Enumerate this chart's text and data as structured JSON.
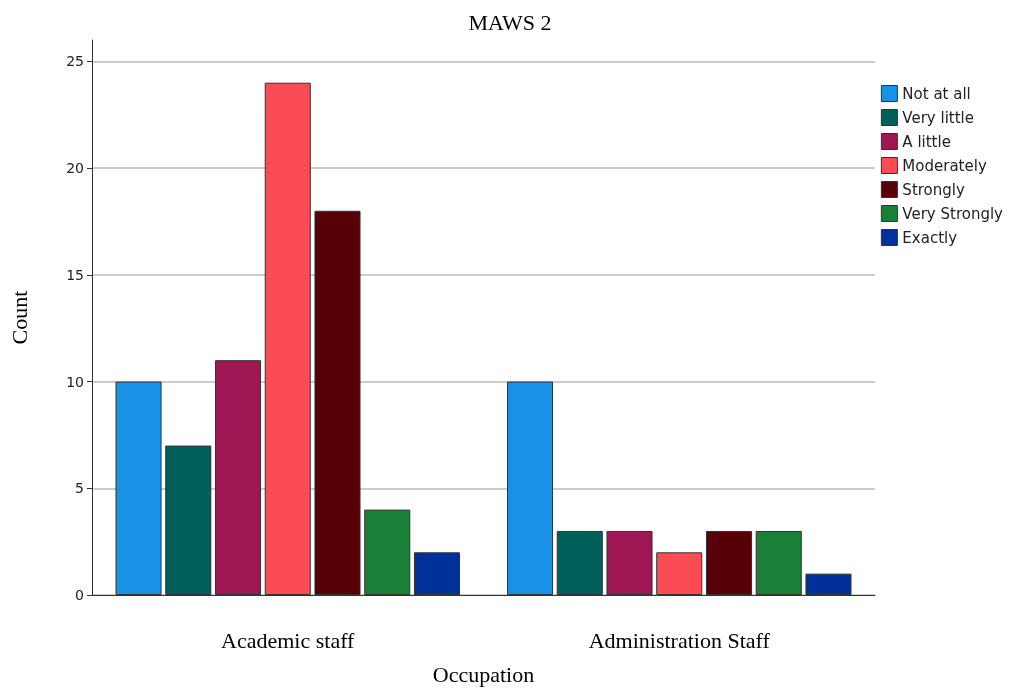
{
  "chart_data": {
    "type": "bar",
    "title": "MAWS 2",
    "xlabel": "Occupation",
    "ylabel": "Count",
    "categories": [
      "Academic staff",
      "Administration Staff"
    ],
    "series": [
      {
        "name": "Not at all",
        "color": "#1892e6",
        "values": [
          10,
          10
        ]
      },
      {
        "name": "Very little",
        "color": "#005e5b",
        "values": [
          7,
          3
        ]
      },
      {
        "name": "A little",
        "color": "#9e1752",
        "values": [
          11,
          3
        ]
      },
      {
        "name": "Moderately",
        "color": "#fb4b54",
        "values": [
          24,
          2
        ]
      },
      {
        "name": "Strongly",
        "color": "#570007",
        "values": [
          18,
          3
        ]
      },
      {
        "name": "Very Strongly",
        "color": "#1a8038",
        "values": [
          4,
          3
        ]
      },
      {
        "name": "Exactly",
        "color": "#00309a",
        "values": [
          2,
          1
        ]
      }
    ],
    "ylim": [
      0,
      26
    ],
    "yticks": [
      0,
      5,
      10,
      15,
      20,
      25
    ],
    "grid": "y",
    "legend": "top right"
  }
}
